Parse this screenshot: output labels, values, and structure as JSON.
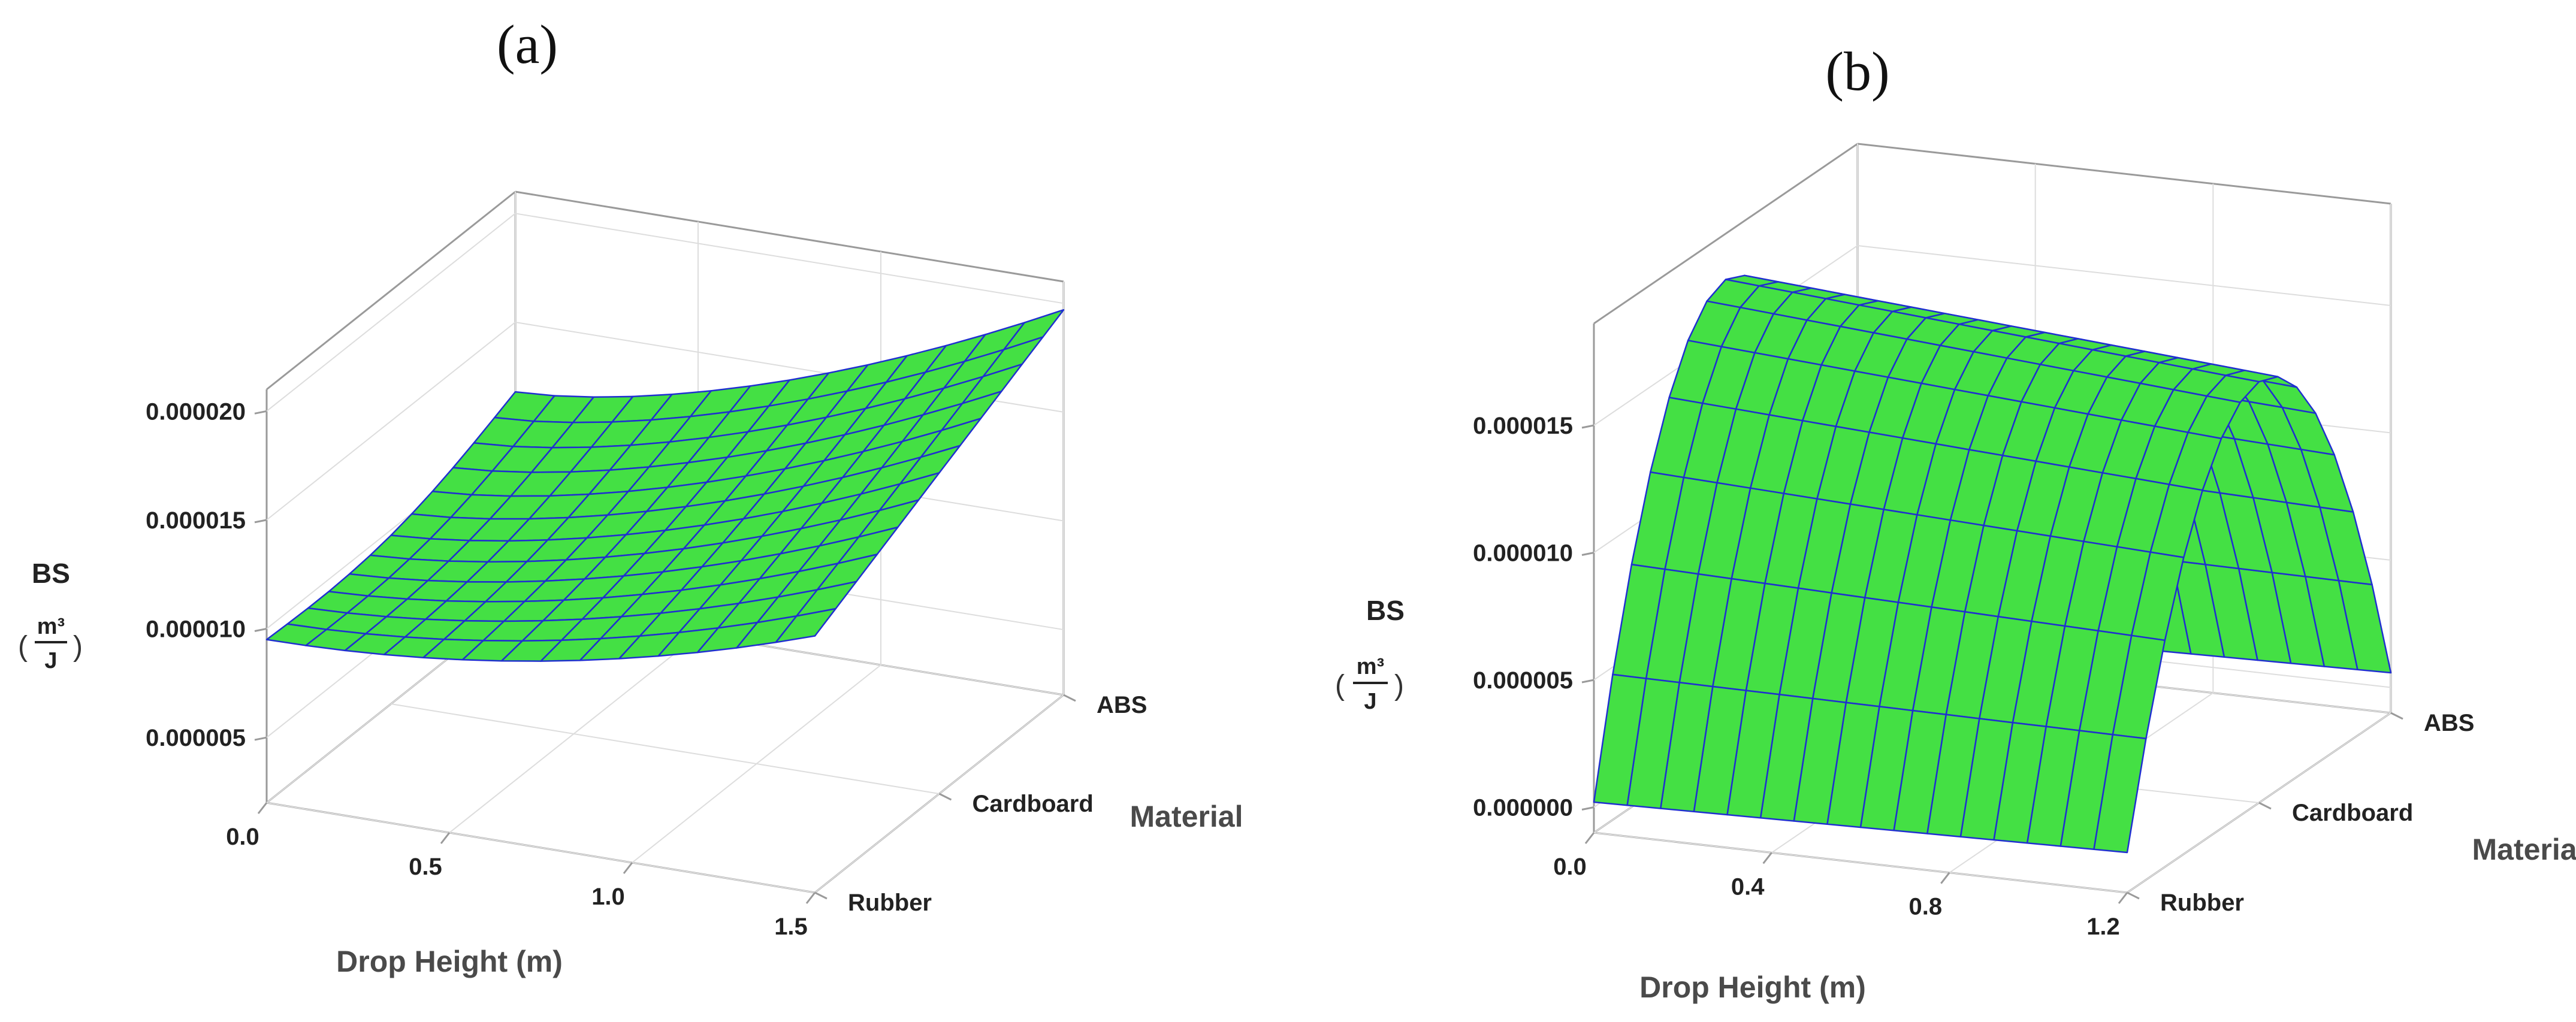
{
  "chart_data": [
    {
      "type": "surface",
      "panel_label": "(a)",
      "xlabel": "Drop Height (m)",
      "x_ticks": [
        "0.0",
        "0.5",
        "1.0",
        "1.5"
      ],
      "xlim": [
        0.0,
        1.5
      ],
      "ylabel": "Material",
      "y_categories": [
        "Rubber",
        "Cardboard",
        "ABS"
      ],
      "zlabel": "BS",
      "z_unit_num": "m³",
      "z_unit_den": "J",
      "z_ticks": [
        "0.000005",
        "0.000010",
        "0.000015",
        "0.000020"
      ],
      "zlim": [
        2e-06,
        2.1e-05
      ],
      "corner_values": {
        "h0_rubber": 9.5e-06,
        "h0_abs": 1.18e-05,
        "hmax_rubber": 1.38e-05,
        "hmax_abs": 1.97e-05
      },
      "surface_color": "#44e044",
      "grid_line_color": "#1f2fd0"
    },
    {
      "type": "surface",
      "panel_label": "(b)",
      "xlabel": "Drop Height (m)",
      "x_ticks": [
        "0.0",
        "0.4",
        "0.8",
        "1.2"
      ],
      "xlim": [
        0.0,
        1.2
      ],
      "ylabel": "Material",
      "y_categories": [
        "Rubber",
        "Cardboard",
        "ABS"
      ],
      "zlabel": "BS",
      "z_unit_num": "m³",
      "z_unit_den": "J",
      "z_ticks": [
        "0.000000",
        "0.000005",
        "0.000010",
        "0.000015"
      ],
      "zlim": [
        -1e-06,
        1.9e-05
      ],
      "ridge_peak": 1.72e-05,
      "ends_value": 2e-07,
      "surface_color": "#44e044",
      "grid_line_color": "#1f2fd0"
    }
  ]
}
